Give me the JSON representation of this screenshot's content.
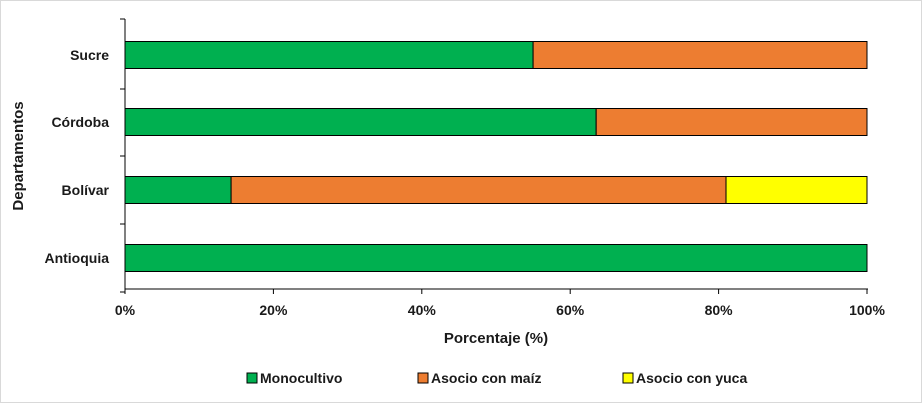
{
  "chart_data": {
    "type": "bar",
    "orientation": "horizontal",
    "stacked": true,
    "categories": [
      "Sucre",
      "Córdoba",
      "Bolívar",
      "Antioquia"
    ],
    "series": [
      {
        "name": "Monocultivo",
        "color": "#00b050",
        "values": [
          55,
          63.5,
          14.3,
          100
        ]
      },
      {
        "name": "Asocio con maíz",
        "color": "#ed7d31",
        "values": [
          45,
          36.5,
          66.7,
          0
        ]
      },
      {
        "name": "Asocio con yuca",
        "color": "#ffff00",
        "values": [
          0,
          0,
          19,
          0
        ]
      }
    ],
    "xlim": [
      0,
      100
    ],
    "xticks": [
      "0%",
      "20%",
      "40%",
      "60%",
      "80%",
      "100%"
    ],
    "xlabel": "Porcentaje (%)",
    "ylabel": "Departamentos",
    "grid": false,
    "legend_position": "bottom"
  }
}
